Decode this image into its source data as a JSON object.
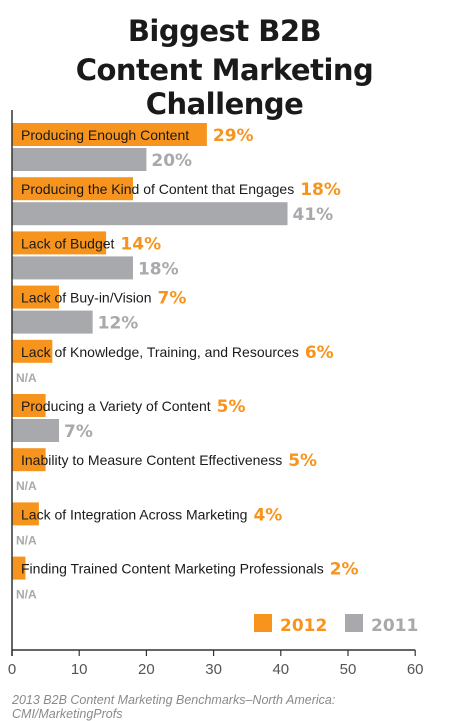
{
  "title_line1": "Biggest B2B",
  "title_line2": "Content Marketing Challenge",
  "source": "2013 B2B Content Marketing Benchmarks–North America: CMI/MarketingProfs",
  "colors": {
    "series_2012": "#f7941d",
    "series_2011": "#a7a9ac",
    "axis": "#333333",
    "label": "#1a1a1a"
  },
  "chart_data": {
    "type": "bar",
    "orientation": "horizontal",
    "categories": [
      "Producing Enough Content",
      "Producing the Kind of Content that Engages",
      "Lack of Budget",
      "Lack of Buy-in/Vision",
      "Lack of Knowledge, Training, and Resources",
      "Producing a Variety of Content",
      "Inability to Measure Content Effectiveness",
      "Lack of Integration Across Marketing",
      "Finding Trained Content Marketing Professionals"
    ],
    "series": [
      {
        "name": "2012",
        "values": [
          29,
          18,
          14,
          7,
          6,
          5,
          5,
          4,
          2
        ],
        "labels": [
          "29%",
          "18%",
          "14%",
          "7%",
          "6%",
          "5%",
          "5%",
          "4%",
          "2%"
        ]
      },
      {
        "name": "2011",
        "values": [
          20,
          41,
          18,
          12,
          null,
          7,
          null,
          null,
          null
        ],
        "labels": [
          "20%",
          "41%",
          "18%",
          "12%",
          "N/A",
          "7%",
          "N/A",
          "N/A",
          "N/A"
        ]
      }
    ],
    "xlim": [
      0,
      60
    ],
    "xticks": [
      0,
      10,
      20,
      30,
      40,
      50,
      60
    ],
    "legend": "bottom-right",
    "grid": false
  }
}
